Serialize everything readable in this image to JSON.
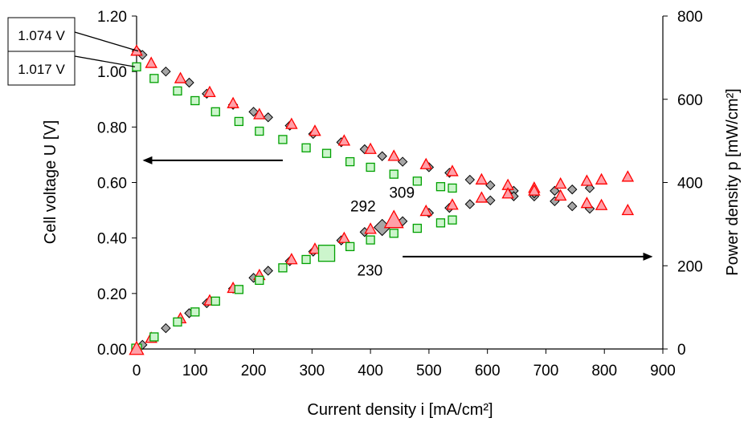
{
  "chart_data": {
    "type": "scatter",
    "xlabel": "Current density i [mA/cm²]",
    "ylabel_left": "Cell voltage U [V]",
    "ylabel_right": "Power density p [mW/cm²]",
    "xlim": [
      0,
      900
    ],
    "ylim_left": [
      0,
      1.2
    ],
    "ylim_right": [
      0,
      800
    ],
    "x_ticks": [
      "0",
      "100",
      "200",
      "300",
      "400",
      "500",
      "600",
      "700",
      "800",
      "900"
    ],
    "y_left_ticks": [
      "0.00",
      "0.20",
      "0.40",
      "0.60",
      "0.80",
      "1.00",
      "1.20"
    ],
    "y_right_ticks": [
      "0",
      "200",
      "400",
      "600",
      "800"
    ],
    "grid": false,
    "series": [
      {
        "marker": "diamond",
        "color": "#7f7f7f",
        "axis": "left",
        "x": [
          0,
          10,
          50,
          90,
          120,
          165,
          200,
          225,
          262,
          302,
          350,
          390,
          420,
          455,
          500,
          535,
          570,
          605,
          645,
          680,
          715,
          745,
          775
        ],
        "values": [
          1.074,
          1.06,
          1.0,
          0.96,
          0.92,
          0.88,
          0.855,
          0.835,
          0.805,
          0.775,
          0.745,
          0.72,
          0.695,
          0.675,
          0.655,
          0.635,
          0.61,
          0.59,
          0.57,
          0.55,
          0.57,
          0.575,
          0.58
        ]
      },
      {
        "marker": "triangle",
        "color": "#ff0000",
        "axis": "left",
        "x": [
          0,
          25,
          75,
          125,
          165,
          210,
          265,
          305,
          355,
          400,
          440,
          495,
          540,
          590,
          635,
          680,
          725,
          770,
          795,
          840
        ],
        "values": [
          1.074,
          1.03,
          0.975,
          0.925,
          0.885,
          0.845,
          0.81,
          0.785,
          0.75,
          0.72,
          0.695,
          0.665,
          0.64,
          0.61,
          0.59,
          0.58,
          0.595,
          0.605,
          0.61,
          0.62
        ]
      },
      {
        "marker": "square",
        "color": "#00a000",
        "axis": "left",
        "x": [
          0,
          30,
          70,
          100,
          135,
          175,
          210,
          250,
          290,
          325,
          365,
          400,
          440,
          480,
          520,
          540
        ],
        "values": [
          1.017,
          0.975,
          0.93,
          0.895,
          0.855,
          0.82,
          0.785,
          0.755,
          0.725,
          0.705,
          0.675,
          0.655,
          0.63,
          0.605,
          0.585,
          0.58
        ]
      },
      {
        "marker": "diamond",
        "color": "#7f7f7f",
        "axis": "right",
        "x": [
          0,
          10,
          50,
          90,
          120,
          165,
          200,
          225,
          262,
          302,
          350,
          390,
          420,
          455,
          500,
          535,
          570,
          605,
          645,
          680,
          715,
          745,
          775
        ],
        "values": [
          0,
          10,
          50,
          86,
          110,
          145,
          171,
          188,
          211,
          234,
          261,
          281,
          292,
          307,
          327,
          339,
          348,
          357,
          367,
          374,
          355,
          343,
          337
        ]
      },
      {
        "marker": "triangle",
        "color": "#ff0000",
        "axis": "right",
        "x": [
          0,
          25,
          75,
          125,
          165,
          210,
          265,
          305,
          355,
          400,
          440,
          495,
          540,
          590,
          635,
          680,
          725,
          770,
          795,
          840
        ],
        "values": [
          0,
          26,
          73,
          116,
          146,
          177,
          215,
          240,
          266,
          288,
          309,
          331,
          346,
          363,
          373,
          380,
          368,
          350,
          345,
          333
        ]
      },
      {
        "marker": "square",
        "color": "#00a000",
        "axis": "right",
        "x": [
          0,
          30,
          70,
          100,
          135,
          175,
          210,
          250,
          290,
          325,
          365,
          400,
          440,
          480,
          520,
          540
        ],
        "values": [
          0,
          29,
          65,
          89,
          115,
          143,
          165,
          195,
          215,
          230,
          246,
          262,
          278,
          290,
          303,
          310
        ]
      }
    ],
    "highlights": [
      {
        "label": "230",
        "marker": "square",
        "color": "#00a000",
        "x": 325,
        "value": 230
      },
      {
        "label": "292",
        "marker": "diamond",
        "color": "#7f7f7f",
        "x": 420,
        "value": 292
      },
      {
        "label": "309",
        "marker": "triangle",
        "color": "#ff0000",
        "x": 440,
        "value": 309
      }
    ],
    "voltage_labels": [
      {
        "label": "1.074 V",
        "x": 0,
        "value": 1.074
      },
      {
        "label": "1.017 V",
        "x": 0,
        "value": 1.017
      }
    ]
  }
}
